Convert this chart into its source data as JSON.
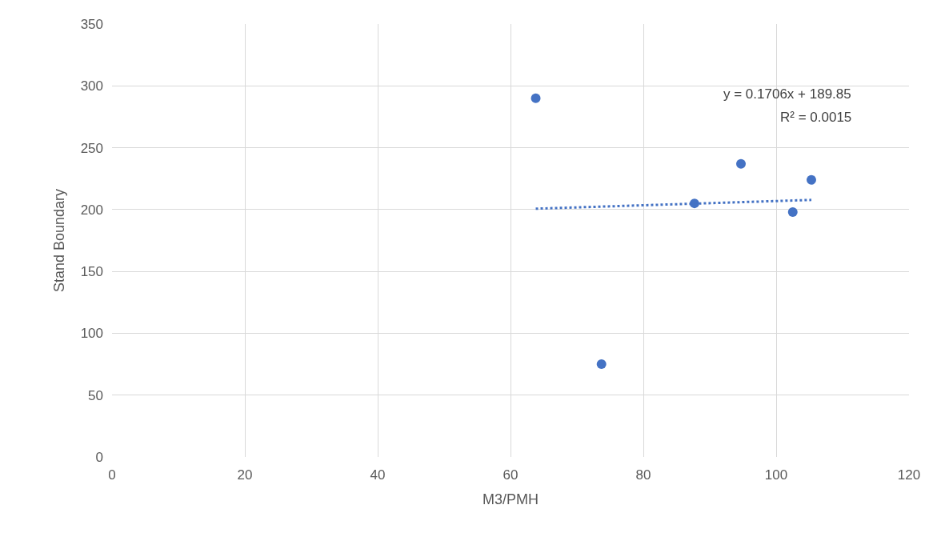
{
  "chart_data": {
    "type": "scatter",
    "xlabel": "M3/PMH",
    "ylabel": "Stand Boundary",
    "xlim": [
      0,
      120
    ],
    "xticks": [
      0,
      20,
      40,
      60,
      80,
      100,
      120
    ],
    "ylim": [
      0,
      350
    ],
    "yticks": [
      0,
      50,
      100,
      150,
      200,
      250,
      300,
      350
    ],
    "grid": true,
    "marker": "circle",
    "series": [
      {
        "color": "#4472c4",
        "x": [
          63.8,
          73.7,
          87.7,
          94.7,
          102.5,
          105.3
        ],
        "values": [
          290,
          75,
          205,
          237,
          198,
          224
        ]
      },
      {
        "type": "line",
        "color": "#4472c4",
        "line_style": "dotted",
        "marker": "none",
        "x": [
          63.8,
          105.3
        ],
        "values": [
          200.7,
          207.8
        ]
      }
    ],
    "annotations": [
      "y = 0.1706x + 189.85",
      "R² = 0.0015"
    ]
  }
}
